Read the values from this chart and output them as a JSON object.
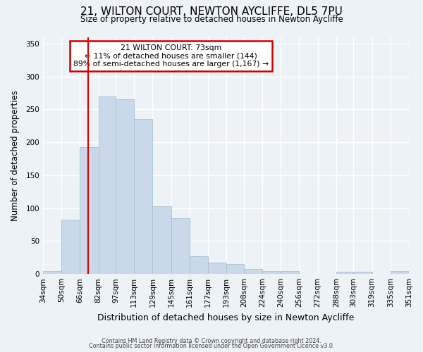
{
  "title": "21, WILTON COURT, NEWTON AYCLIFFE, DL5 7PU",
  "subtitle": "Size of property relative to detached houses in Newton Aycliffe",
  "xlabel": "Distribution of detached houses by size in Newton Aycliffe",
  "ylabel": "Number of detached properties",
  "bar_values": [
    5,
    83,
    193,
    270,
    265,
    235,
    103,
    85,
    27,
    17,
    15,
    8,
    5,
    4,
    0,
    0,
    3,
    3,
    0,
    4
  ],
  "bin_labels": [
    "34sqm",
    "50sqm",
    "66sqm",
    "82sqm",
    "97sqm",
    "113sqm",
    "129sqm",
    "145sqm",
    "161sqm",
    "177sqm",
    "193sqm",
    "208sqm",
    "224sqm",
    "240sqm",
    "256sqm",
    "272sqm",
    "288sqm",
    "303sqm",
    "319sqm",
    "335sqm",
    "351sqm"
  ],
  "bin_edges": [
    34,
    50,
    66,
    82,
    97,
    113,
    129,
    145,
    161,
    177,
    193,
    208,
    224,
    240,
    256,
    272,
    288,
    303,
    319,
    335,
    351
  ],
  "bar_color": "#c9d9ea",
  "bar_edge_color": "#a8bfd4",
  "red_line_x": 73,
  "annotation_title": "21 WILTON COURT: 73sqm",
  "annotation_line1": "← 11% of detached houses are smaller (144)",
  "annotation_line2": "89% of semi-detached houses are larger (1,167) →",
  "annotation_box_color": "#ffffff",
  "annotation_box_edge": "#cc0000",
  "ylim": [
    0,
    360
  ],
  "yticks": [
    0,
    50,
    100,
    150,
    200,
    250,
    300,
    350
  ],
  "footer1": "Contains HM Land Registry data © Crown copyright and database right 2024.",
  "footer2": "Contains public sector information licensed under the Open Government Licence v3.0.",
  "bg_color": "#edf2f7",
  "title_fontsize": 11,
  "subtitle_fontsize": 8.5
}
